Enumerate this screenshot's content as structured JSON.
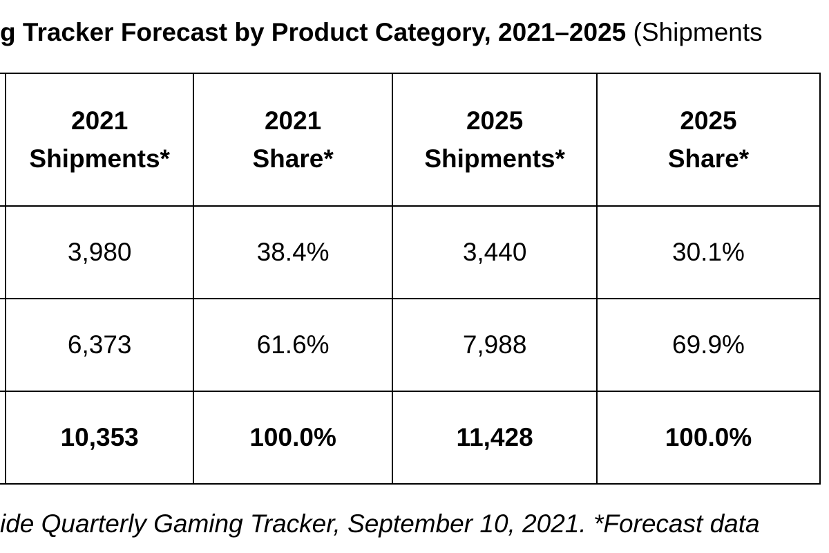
{
  "title": {
    "main": "g Tracker Forecast by Product Category, 2021–2025",
    "sub": "(Shipments"
  },
  "chart_data": {
    "type": "table",
    "columns": [
      [
        "2021",
        "Shipments*"
      ],
      [
        "2021",
        "Share*"
      ],
      [
        "2025",
        "Shipments*"
      ],
      [
        "2025",
        "Share*"
      ]
    ],
    "rows": [
      [
        "3,980",
        "38.4%",
        "3,440",
        "30.1%"
      ],
      [
        "6,373",
        "61.6%",
        "7,988",
        "69.9%"
      ]
    ],
    "total": [
      "10,353",
      "100.0%",
      "11,428",
      "100.0%"
    ]
  },
  "footnote": "ide Quarterly Gaming Tracker, September 10, 2021. *Forecast data"
}
